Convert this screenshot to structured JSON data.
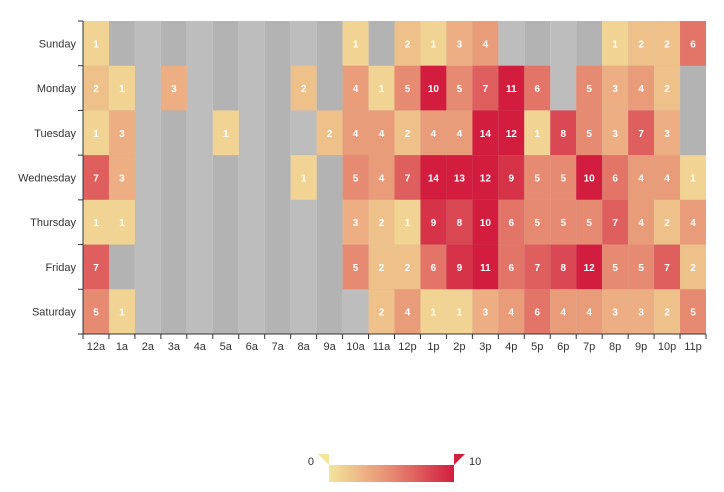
{
  "chart_data": {
    "type": "heatmap",
    "title": "",
    "xlabel": "",
    "ylabel": "",
    "x_categories": [
      "12a",
      "1a",
      "2a",
      "3a",
      "4a",
      "5a",
      "6a",
      "7a",
      "8a",
      "9a",
      "10a",
      "11a",
      "12p",
      "1p",
      "2p",
      "3p",
      "4p",
      "5p",
      "6p",
      "7p",
      "8p",
      "9p",
      "10p",
      "11p"
    ],
    "y_categories": [
      "Sunday",
      "Monday",
      "Tuesday",
      "Wednesday",
      "Thursday",
      "Friday",
      "Saturday"
    ],
    "values": [
      [
        1,
        0,
        0,
        0,
        0,
        0,
        0,
        0,
        0,
        0,
        1,
        0,
        2,
        1,
        3,
        4,
        0,
        0,
        0,
        0,
        1,
        2,
        2,
        6
      ],
      [
        2,
        1,
        0,
        3,
        0,
        0,
        0,
        0,
        2,
        0,
        4,
        1,
        5,
        10,
        5,
        7,
        11,
        6,
        0,
        5,
        3,
        4,
        2,
        0
      ],
      [
        1,
        3,
        0,
        0,
        0,
        1,
        0,
        0,
        0,
        2,
        4,
        4,
        2,
        4,
        4,
        14,
        12,
        1,
        8,
        5,
        3,
        7,
        3,
        0
      ],
      [
        7,
        3,
        0,
        0,
        0,
        0,
        0,
        0,
        1,
        0,
        5,
        4,
        7,
        14,
        13,
        12,
        9,
        5,
        5,
        10,
        6,
        4,
        4,
        1
      ],
      [
        1,
        1,
        0,
        0,
        0,
        0,
        0,
        0,
        0,
        0,
        3,
        2,
        1,
        9,
        8,
        10,
        6,
        5,
        5,
        5,
        7,
        4,
        2,
        4
      ],
      [
        7,
        0,
        0,
        0,
        0,
        0,
        0,
        0,
        0,
        0,
        5,
        2,
        2,
        6,
        9,
        11,
        6,
        7,
        8,
        12,
        5,
        5,
        7,
        2
      ],
      [
        5,
        1,
        0,
        0,
        0,
        0,
        0,
        0,
        0,
        0,
        0,
        2,
        4,
        1,
        1,
        3,
        4,
        6,
        4,
        4,
        3,
        3,
        2,
        5
      ]
    ],
    "visual_map": {
      "min": 0,
      "max": 10,
      "min_label": "0",
      "max_label": "10",
      "colors": [
        "#f3e59b",
        "#e78a72",
        "#d21d3f"
      ]
    },
    "split_area_colors": [
      "#bdbdbd",
      "#b3b3b3"
    ]
  }
}
